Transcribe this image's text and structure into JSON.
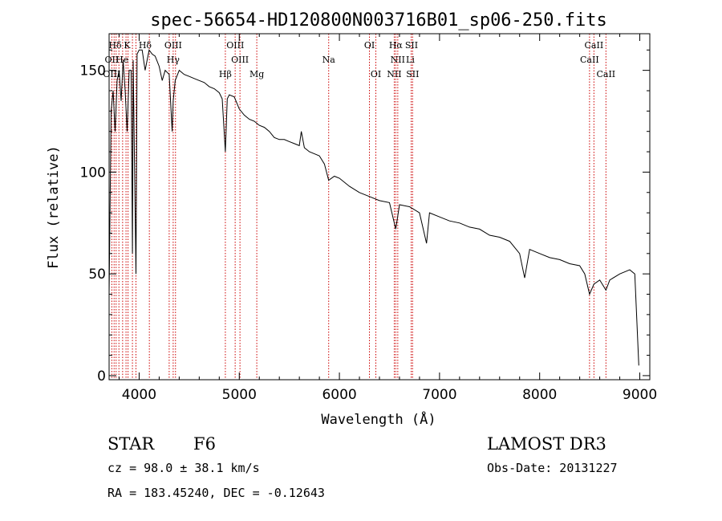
{
  "title": "spec-56654-HD120800N003716B01_sp06-250.fits",
  "info": {
    "object_class": "STAR",
    "subclass": "F6",
    "survey": "LAMOST DR3",
    "cz": "cz = 98.0 ± 38.1 km/s",
    "obs_date": "Obs-Date: 20131227",
    "coords": "RA = 183.45240, DEC =  -0.12643"
  },
  "chart_data": {
    "type": "line",
    "title": "spec-56654-HD120800N003716B01_sp06-250.fits",
    "xlabel": "Wavelength (Å)",
    "ylabel": "Flux (relative)",
    "xlim": [
      3700,
      9100
    ],
    "ylim": [
      -2,
      168
    ],
    "x_ticks": [
      4000,
      5000,
      6000,
      7000,
      8000,
      9000
    ],
    "y_ticks": [
      0,
      50,
      100,
      150
    ],
    "series": [
      {
        "color": "#000000",
        "x": [
          3700,
          3720,
          3740,
          3760,
          3780,
          3800,
          3820,
          3840,
          3860,
          3880,
          3900,
          3920,
          3933,
          3940,
          3955,
          3968,
          3980,
          4000,
          4030,
          4060,
          4100,
          4130,
          4160,
          4200,
          4230,
          4260,
          4300,
          4330,
          4340,
          4360,
          4400,
          4450,
          4500,
          4550,
          4600,
          4650,
          4700,
          4750,
          4800,
          4830,
          4861,
          4880,
          4900,
          4950,
          5000,
          5050,
          5100,
          5150,
          5200,
          5250,
          5300,
          5350,
          5400,
          5450,
          5500,
          5550,
          5600,
          5620,
          5650,
          5700,
          5750,
          5800,
          5850,
          5893,
          5950,
          6000,
          6100,
          6200,
          6300,
          6400,
          6500,
          6563,
          6600,
          6700,
          6800,
          6870,
          6900,
          7000,
          7100,
          7200,
          7300,
          7400,
          7500,
          7600,
          7700,
          7800,
          7850,
          7900,
          8000,
          8100,
          8200,
          8300,
          8400,
          8450,
          8498,
          8542,
          8600,
          8662,
          8700,
          8800,
          8900,
          8950,
          8990
        ],
        "y": [
          40,
          130,
          140,
          120,
          145,
          150,
          135,
          155,
          140,
          120,
          150,
          150,
          60,
          155,
          100,
          50,
          158,
          160,
          160,
          150,
          160,
          158,
          157,
          152,
          145,
          150,
          148,
          120,
          135,
          145,
          150,
          148,
          147,
          146,
          145,
          144,
          142,
          141,
          139,
          136,
          110,
          136,
          138,
          137,
          131,
          128,
          126,
          125,
          123,
          122,
          120,
          117,
          116,
          116,
          115,
          114,
          113,
          120,
          112,
          110,
          109,
          108,
          104,
          96,
          98,
          97,
          93,
          90,
          88,
          86,
          85,
          72,
          84,
          83,
          80,
          65,
          80,
          78,
          76,
          75,
          73,
          72,
          69,
          68,
          66,
          60,
          48,
          62,
          60,
          58,
          57,
          55,
          54,
          50,
          40,
          45,
          47,
          42,
          47,
          50,
          52,
          50,
          5
        ]
      }
    ],
    "emission_lines": [
      {
        "label": "Hδ",
        "wavelength": 3760,
        "row": 0
      },
      {
        "label": "K",
        "wavelength": 3880,
        "row": 0
      },
      {
        "label": "Hδ",
        "wavelength": 4060,
        "row": 0
      },
      {
        "label": "OIII",
        "wavelength": 4340,
        "row": 0
      },
      {
        "label": "OIII",
        "wavelength": 4960,
        "row": 0
      },
      {
        "label": "OI",
        "wavelength": 6300,
        "row": 0
      },
      {
        "label": "Hα",
        "wavelength": 6563,
        "row": 0
      },
      {
        "label": "SII",
        "wavelength": 6720,
        "row": 0
      },
      {
        "label": "CaII",
        "wavelength": 8542,
        "row": 0
      },
      {
        "label": "OII",
        "wavelength": 3727,
        "row": 1
      },
      {
        "label": "He",
        "wavelength": 3830,
        "row": 1
      },
      {
        "label": "Hγ",
        "wavelength": 4340,
        "row": 1
      },
      {
        "label": "OIII",
        "wavelength": 5007,
        "row": 1
      },
      {
        "label": "Na",
        "wavelength": 5893,
        "row": 1
      },
      {
        "label": "NII",
        "wavelength": 6583,
        "row": 1
      },
      {
        "label": "Li",
        "wavelength": 6708,
        "row": 1
      },
      {
        "label": "CaII",
        "wavelength": 8498,
        "row": 1
      },
      {
        "label": "OIII",
        "wavelength": 3727,
        "row": 2
      },
      {
        "label": "Hβ",
        "wavelength": 4861,
        "row": 2
      },
      {
        "label": "Mg",
        "wavelength": 5175,
        "row": 2
      },
      {
        "label": "OI",
        "wavelength": 6364,
        "row": 2
      },
      {
        "label": "NII",
        "wavelength": 6548,
        "row": 2
      },
      {
        "label": "SII",
        "wavelength": 6731,
        "row": 2
      },
      {
        "label": "CaII",
        "wavelength": 8662,
        "row": 2
      }
    ],
    "marker_wavelengths": [
      3727,
      3750,
      3770,
      3798,
      3835,
      3869,
      3889,
      3933,
      3968,
      4102,
      4300,
      4340,
      4363,
      4861,
      4959,
      5007,
      5175,
      5893,
      6300,
      6364,
      6548,
      6563,
      6583,
      6717,
      6731,
      8498,
      8542,
      8662
    ],
    "marker_color": "#cc0000"
  }
}
